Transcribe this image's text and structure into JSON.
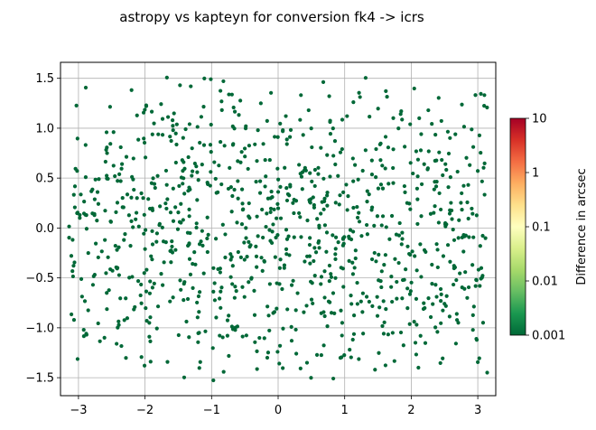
{
  "chart_data": {
    "type": "scatter",
    "title": "astropy vs kapteyn for conversion fk4 -> icrs",
    "xlabel": "",
    "ylabel": "",
    "xlim": [
      -3.27,
      3.27
    ],
    "ylim": [
      -1.68,
      1.66
    ],
    "xticks": [
      -3,
      -2,
      -1,
      0,
      1,
      2,
      3
    ],
    "yticks": [
      -1.5,
      -1.0,
      -0.5,
      0.0,
      0.5,
      1.0,
      1.5
    ],
    "xtick_labels": [
      "−3",
      "−2",
      "−1",
      "0",
      "1",
      "2",
      "3"
    ],
    "ytick_labels": [
      "−1.5",
      "−1.0",
      "−0.5",
      "0.0",
      "0.5",
      "1.0",
      "1.5"
    ],
    "grid": true,
    "marker_color": "#006837",
    "num_points": 1000,
    "point_seed": 12345,
    "colorbar": {
      "label": "Difference in arcsec",
      "scale": "log",
      "range": [
        0.001,
        10
      ],
      "ticks": [
        0.001,
        0.01,
        0.1,
        1,
        10
      ],
      "tick_labels": [
        "0.001",
        "0.01",
        "0.1",
        "1",
        "10"
      ],
      "colormap": "RdYlGn_r",
      "colors": [
        "#006837",
        "#1a9850",
        "#66bd63",
        "#a6d96a",
        "#d9ef8b",
        "#ffffbf",
        "#fee08b",
        "#fdae61",
        "#f46d43",
        "#d73027",
        "#a50026"
      ]
    }
  }
}
